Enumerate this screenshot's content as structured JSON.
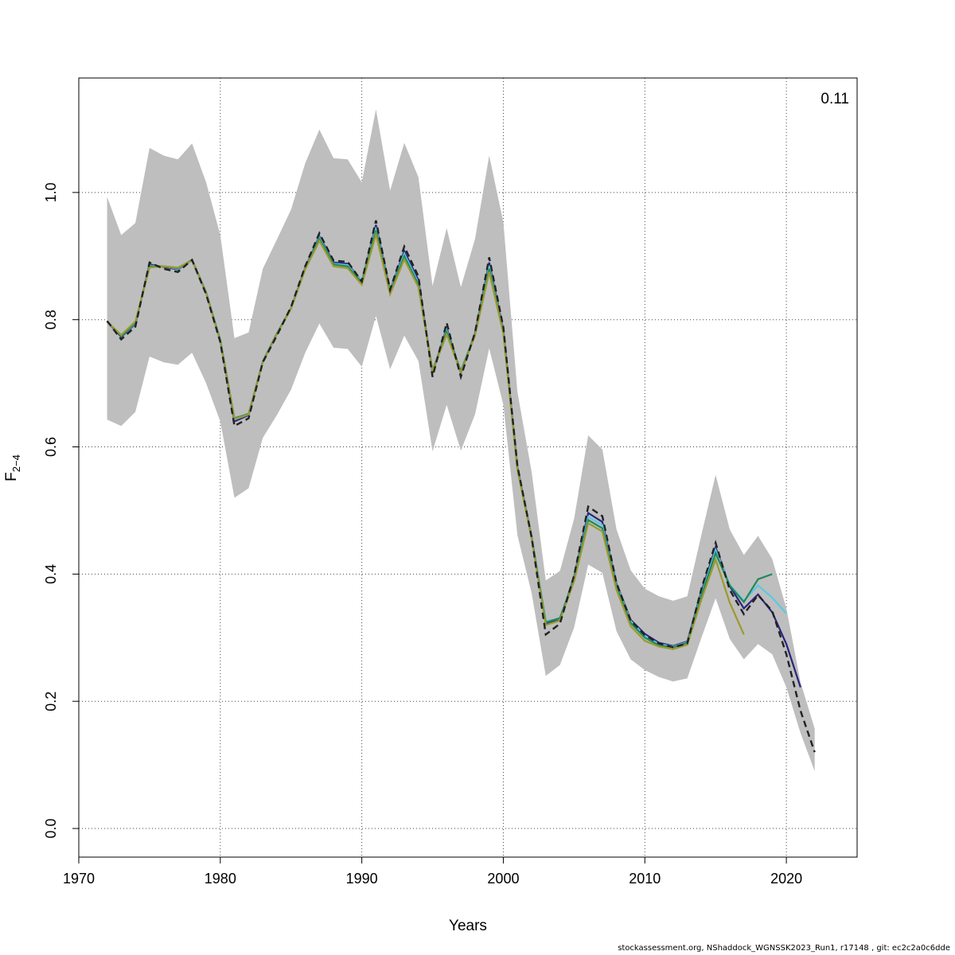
{
  "chart_data": {
    "type": "line",
    "xlabel": "Years",
    "ylabel": {
      "main": "F",
      "sub": "2−4"
    },
    "annotation": "0.11",
    "xlim": [
      1970,
      2025
    ],
    "ylim": [
      -0.045,
      1.18
    ],
    "x_ticks": [
      "1970",
      "1980",
      "1990",
      "2000",
      "2010",
      "2020"
    ],
    "y_ticks": [
      "0.0",
      "0.2",
      "0.4",
      "0.6",
      "0.8",
      "1.0"
    ],
    "grid": true,
    "band": {
      "x": [
        1972,
        1973,
        1974,
        1975,
        1976,
        1977,
        1978,
        1979,
        1980,
        1981,
        1982,
        1983,
        1984,
        1985,
        1986,
        1987,
        1988,
        1989,
        1990,
        1991,
        1992,
        1993,
        1994,
        1995,
        1996,
        1997,
        1998,
        1999,
        2000,
        2001,
        2002,
        2003,
        2004,
        2005,
        2006,
        2007,
        2008,
        2009,
        2010,
        2011,
        2012,
        2013,
        2014,
        2015,
        2016,
        2017,
        2018,
        2019,
        2020,
        2021,
        2022
      ],
      "upper": [
        0.993,
        0.933,
        0.952,
        1.07,
        1.058,
        1.052,
        1.077,
        1.016,
        0.933,
        0.771,
        0.78,
        0.88,
        0.926,
        0.973,
        1.046,
        1.099,
        1.054,
        1.052,
        1.016,
        1.131,
        1.003,
        1.078,
        1.024,
        0.853,
        0.944,
        0.851,
        0.927,
        1.058,
        0.953,
        0.686,
        0.561,
        0.39,
        0.405,
        0.487,
        0.618,
        0.596,
        0.47,
        0.406,
        0.377,
        0.365,
        0.358,
        0.365,
        0.462,
        0.556,
        0.47,
        0.43,
        0.46,
        0.424,
        0.346,
        0.23,
        0.157
      ],
      "lower": [
        0.643,
        0.633,
        0.655,
        0.742,
        0.733,
        0.729,
        0.748,
        0.7,
        0.64,
        0.52,
        0.535,
        0.614,
        0.65,
        0.69,
        0.748,
        0.794,
        0.756,
        0.754,
        0.726,
        0.806,
        0.722,
        0.775,
        0.735,
        0.593,
        0.666,
        0.594,
        0.651,
        0.755,
        0.666,
        0.461,
        0.37,
        0.24,
        0.257,
        0.316,
        0.415,
        0.402,
        0.31,
        0.266,
        0.249,
        0.238,
        0.231,
        0.236,
        0.3,
        0.362,
        0.298,
        0.266,
        0.29,
        0.274,
        0.222,
        0.15,
        0.09
      ]
    },
    "series": [
      {
        "color": "#222222",
        "dashed": true,
        "x": [
          1972,
          1973,
          1974,
          1975,
          1976,
          1977,
          1978,
          1979,
          1980,
          1981,
          1982,
          1983,
          1984,
          1985,
          1986,
          1987,
          1988,
          1989,
          1990,
          1991,
          1992,
          1993,
          1994,
          1995,
          1996,
          1997,
          1998,
          1999,
          2000,
          2001,
          2002,
          2003,
          2004,
          2005,
          2006,
          2007,
          2008,
          2009,
          2010,
          2011,
          2012,
          2013,
          2014,
          2015,
          2016,
          2017,
          2018,
          2019,
          2020,
          2021,
          2022
        ],
        "values": [
          0.798,
          0.769,
          0.789,
          0.89,
          0.88,
          0.875,
          0.894,
          0.84,
          0.765,
          0.633,
          0.645,
          0.733,
          0.775,
          0.82,
          0.884,
          0.936,
          0.893,
          0.891,
          0.86,
          0.956,
          0.847,
          0.915,
          0.868,
          0.71,
          0.795,
          0.71,
          0.78,
          0.898,
          0.788,
          0.57,
          0.458,
          0.305,
          0.322,
          0.398,
          0.506,
          0.491,
          0.386,
          0.327,
          0.304,
          0.291,
          0.285,
          0.291,
          0.377,
          0.449,
          0.375,
          0.337,
          0.367,
          0.342,
          0.274,
          0.185,
          0.12
        ]
      },
      {
        "color": "#2a2480",
        "x": [
          1972,
          1973,
          1974,
          1975,
          1976,
          1977,
          1978,
          1979,
          1980,
          1981,
          1982,
          1983,
          1984,
          1985,
          1986,
          1987,
          1988,
          1989,
          1990,
          1991,
          1992,
          1993,
          1994,
          1995,
          1996,
          1997,
          1998,
          1999,
          2000,
          2001,
          2002,
          2003,
          2004,
          2005,
          2006,
          2007,
          2008,
          2009,
          2010,
          2011,
          2012,
          2013,
          2014,
          2015,
          2016,
          2017,
          2018,
          2019,
          2020,
          2021
        ],
        "values": [
          0.797,
          0.773,
          0.793,
          0.887,
          0.883,
          0.879,
          0.894,
          0.842,
          0.767,
          0.64,
          0.65,
          0.734,
          0.778,
          0.818,
          0.882,
          0.931,
          0.89,
          0.888,
          0.86,
          0.949,
          0.846,
          0.908,
          0.862,
          0.716,
          0.787,
          0.716,
          0.779,
          0.89,
          0.784,
          0.568,
          0.459,
          0.322,
          0.328,
          0.396,
          0.496,
          0.482,
          0.385,
          0.328,
          0.306,
          0.292,
          0.287,
          0.294,
          0.373,
          0.442,
          0.381,
          0.346,
          0.368,
          0.34,
          0.29,
          0.222
        ]
      },
      {
        "color": "#5bc8e4",
        "x": [
          1972,
          1973,
          1974,
          1975,
          1976,
          1977,
          1978,
          1979,
          1980,
          1981,
          1982,
          1983,
          1984,
          1985,
          1986,
          1987,
          1988,
          1989,
          1990,
          1991,
          1992,
          1993,
          1994,
          1995,
          1996,
          1997,
          1998,
          1999,
          2000,
          2001,
          2002,
          2003,
          2004,
          2005,
          2006,
          2007,
          2008,
          2009,
          2010,
          2011,
          2012,
          2013,
          2014,
          2015,
          2016,
          2017,
          2018,
          2019,
          2020
        ],
        "values": [
          0.797,
          0.774,
          0.794,
          0.885,
          0.884,
          0.88,
          0.894,
          0.843,
          0.768,
          0.643,
          0.651,
          0.734,
          0.778,
          0.818,
          0.881,
          0.929,
          0.888,
          0.886,
          0.86,
          0.945,
          0.845,
          0.904,
          0.858,
          0.718,
          0.784,
          0.718,
          0.778,
          0.885,
          0.782,
          0.566,
          0.459,
          0.326,
          0.33,
          0.394,
          0.49,
          0.477,
          0.383,
          0.326,
          0.303,
          0.29,
          0.286,
          0.293,
          0.369,
          0.438,
          0.383,
          0.358,
          0.382,
          0.363,
          0.338
        ]
      },
      {
        "color": "#1f8a5a",
        "x": [
          1972,
          1973,
          1974,
          1975,
          1976,
          1977,
          1978,
          1979,
          1980,
          1981,
          1982,
          1983,
          1984,
          1985,
          1986,
          1987,
          1988,
          1989,
          1990,
          1991,
          1992,
          1993,
          1994,
          1995,
          1996,
          1997,
          1998,
          1999,
          2000,
          2001,
          2002,
          2003,
          2004,
          2005,
          2006,
          2007,
          2008,
          2009,
          2010,
          2011,
          2012,
          2013,
          2014,
          2015,
          2016,
          2017,
          2018,
          2019
        ],
        "values": [
          0.797,
          0.774,
          0.795,
          0.884,
          0.884,
          0.881,
          0.894,
          0.843,
          0.768,
          0.645,
          0.652,
          0.734,
          0.778,
          0.818,
          0.88,
          0.927,
          0.887,
          0.884,
          0.858,
          0.94,
          0.843,
          0.9,
          0.855,
          0.72,
          0.781,
          0.719,
          0.777,
          0.88,
          0.78,
          0.565,
          0.458,
          0.324,
          0.331,
          0.392,
          0.485,
          0.472,
          0.38,
          0.323,
          0.3,
          0.288,
          0.285,
          0.292,
          0.366,
          0.433,
          0.382,
          0.356,
          0.392,
          0.4
        ]
      },
      {
        "color": "#9a9a2e",
        "x": [
          1972,
          1973,
          1974,
          1975,
          1976,
          1977,
          1978,
          1979,
          1980,
          1981,
          1982,
          1983,
          1984,
          1985,
          1986,
          1987,
          1988,
          1989,
          1990,
          1991,
          1992,
          1993,
          1994,
          1995,
          1996,
          1997,
          1998,
          1999,
          2000,
          2001,
          2002,
          2003,
          2004,
          2005,
          2006,
          2007,
          2008,
          2009,
          2010,
          2011,
          2012,
          2013,
          2014,
          2015,
          2016,
          2017
        ],
        "values": [
          0.797,
          0.776,
          0.797,
          0.882,
          0.884,
          0.882,
          0.893,
          0.842,
          0.766,
          0.644,
          0.651,
          0.733,
          0.777,
          0.817,
          0.879,
          0.924,
          0.884,
          0.881,
          0.855,
          0.934,
          0.84,
          0.895,
          0.851,
          0.719,
          0.777,
          0.717,
          0.775,
          0.875,
          0.778,
          0.564,
          0.456,
          0.32,
          0.327,
          0.389,
          0.48,
          0.467,
          0.375,
          0.318,
          0.295,
          0.286,
          0.282,
          0.289,
          0.36,
          0.423,
          0.355,
          0.305
        ]
      }
    ]
  },
  "footer": "stockassessment.org, NShaddock_WGNSSK2023_Run1, r17148 , git: ec2c2a0c6dde"
}
